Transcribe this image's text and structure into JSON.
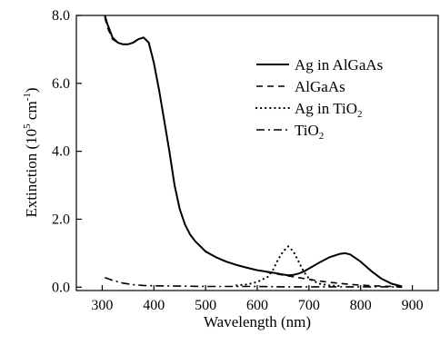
{
  "chart_data": {
    "type": "line",
    "xlabel": "Wavelength (nm)",
    "ylabel": {
      "base": "Extinction (10",
      "exp1": "5",
      "mid": " cm",
      "exp2": "-1",
      "end": ")"
    },
    "xlim": [
      250,
      950
    ],
    "ylim": [
      -0.1,
      8.0
    ],
    "x_ticks": [
      300,
      400,
      500,
      600,
      700,
      800,
      900
    ],
    "x_tick_labels": [
      "300",
      "400",
      "500",
      "600",
      "700",
      "800",
      "900"
    ],
    "y_ticks": [
      0.0,
      2.0,
      4.0,
      6.0,
      8.0
    ],
    "y_tick_labels": [
      "0.0",
      "2.0",
      "4.0",
      "6.0",
      "8.0"
    ],
    "grid": false,
    "legend_position": "top-right",
    "series": [
      {
        "name": "Ag in AlGaAs",
        "style": "solid",
        "x": [
          305,
          310,
          320,
          330,
          340,
          350,
          360,
          370,
          380,
          390,
          400,
          410,
          420,
          430,
          440,
          450,
          460,
          470,
          480,
          490,
          500,
          520,
          540,
          560,
          580,
          600,
          620,
          640,
          650,
          660,
          670,
          680,
          690,
          700,
          720,
          740,
          760,
          770,
          780,
          800,
          820,
          840,
          860,
          880
        ],
        "y": [
          8.0,
          7.75,
          7.35,
          7.2,
          7.15,
          7.15,
          7.2,
          7.3,
          7.35,
          7.2,
          6.6,
          5.8,
          4.9,
          4.0,
          3.0,
          2.3,
          1.85,
          1.55,
          1.35,
          1.2,
          1.05,
          0.88,
          0.75,
          0.65,
          0.57,
          0.5,
          0.45,
          0.4,
          0.37,
          0.35,
          0.36,
          0.4,
          0.46,
          0.55,
          0.72,
          0.88,
          0.98,
          1.0,
          0.96,
          0.75,
          0.48,
          0.25,
          0.1,
          0.02
        ]
      },
      {
        "name": "AlGaAs",
        "style": "dashed",
        "x": [
          305,
          310,
          320,
          330,
          340,
          350,
          360,
          370,
          380,
          390,
          400,
          410,
          420,
          430,
          440,
          450,
          460,
          470,
          480,
          490,
          500,
          520,
          540,
          560,
          580,
          600,
          620,
          640,
          660,
          680,
          700,
          720,
          740,
          760,
          780,
          800,
          820,
          840,
          860,
          880
        ],
        "y": [
          7.95,
          7.65,
          7.3,
          7.2,
          7.15,
          7.15,
          7.2,
          7.3,
          7.35,
          7.2,
          6.6,
          5.8,
          4.9,
          4.0,
          3.0,
          2.3,
          1.85,
          1.55,
          1.35,
          1.2,
          1.05,
          0.88,
          0.75,
          0.65,
          0.57,
          0.5,
          0.44,
          0.38,
          0.33,
          0.28,
          0.23,
          0.18,
          0.14,
          0.11,
          0.08,
          0.06,
          0.04,
          0.03,
          0.02,
          0.01
        ]
      },
      {
        "name": "Ag in TiO",
        "name_sub": "2",
        "style": "dotted",
        "x": [
          560,
          580,
          600,
          620,
          630,
          640,
          650,
          660,
          670,
          680,
          690,
          700,
          720,
          740,
          760
        ],
        "y": [
          0.05,
          0.08,
          0.15,
          0.3,
          0.5,
          0.8,
          1.05,
          1.2,
          1.05,
          0.75,
          0.45,
          0.25,
          0.1,
          0.05,
          0.03
        ]
      },
      {
        "name": "TiO",
        "name_sub": "2",
        "style": "dashdot",
        "x": [
          305,
          320,
          340,
          360,
          380,
          400,
          450,
          500,
          550,
          600,
          650,
          700,
          750,
          800,
          850,
          880
        ],
        "y": [
          0.28,
          0.2,
          0.12,
          0.07,
          0.05,
          0.04,
          0.03,
          0.02,
          0.02,
          0.02,
          0.01,
          0.01,
          0.01,
          0.01,
          0.01,
          0.0
        ]
      }
    ]
  }
}
